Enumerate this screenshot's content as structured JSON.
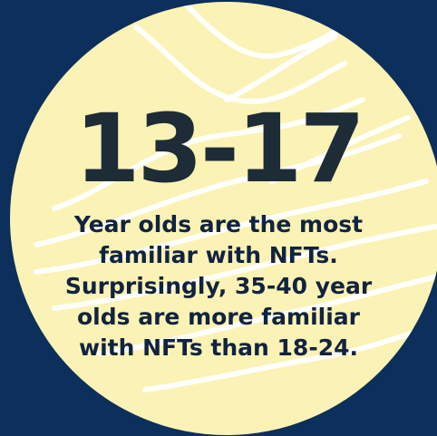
{
  "headline": "13-17",
  "caption_lines": [
    "Year olds are the most",
    "familiar with NFTs.",
    "Surprisingly, 35-40 year",
    "olds are more familiar",
    "with NFTs than 18-24."
  ],
  "colors": {
    "background": "#0c2f5b",
    "circle": "#fbf2b5",
    "wave_lines": "#ffffff",
    "headline_text": "#1d2c36",
    "caption_text": "#11233f"
  }
}
